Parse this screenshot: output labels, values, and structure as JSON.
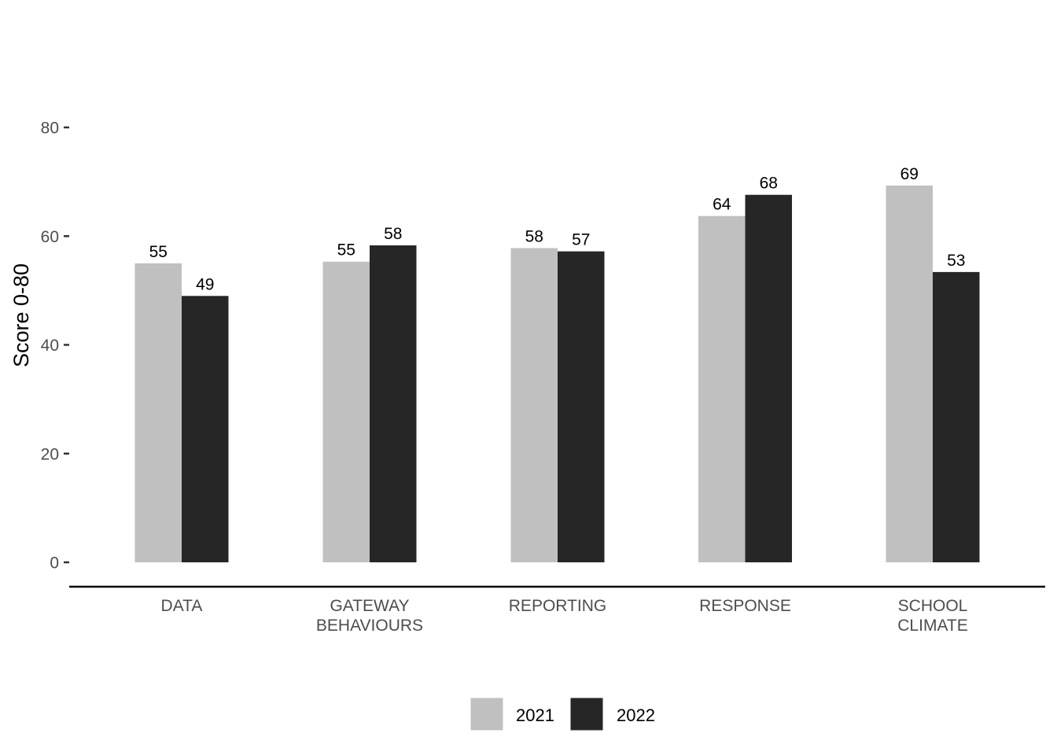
{
  "chart_data": {
    "type": "bar",
    "title": "",
    "xlabel": "",
    "ylabel": "Score 0-80",
    "ylim": [
      0,
      80
    ],
    "yticks": [
      0,
      20,
      40,
      60,
      80
    ],
    "grid": false,
    "legend_position": "bottom",
    "categories": [
      [
        "DATA"
      ],
      [
        "GATEWAY",
        "BEHAVIOURS"
      ],
      [
        "REPORTING"
      ],
      [
        "RESPONSE"
      ],
      [
        "SCHOOL",
        "CLIMATE"
      ]
    ],
    "series": [
      {
        "name": "2021",
        "color": "#c0c0c0",
        "values": [
          55,
          55.3,
          57.8,
          63.7,
          69.3
        ],
        "labels": [
          "55",
          "55",
          "58",
          "64",
          "69"
        ]
      },
      {
        "name": "2022",
        "color": "#262626",
        "values": [
          49,
          58.3,
          57.2,
          67.6,
          53.4
        ],
        "labels": [
          "49",
          "58",
          "57",
          "68",
          "53"
        ]
      }
    ]
  }
}
